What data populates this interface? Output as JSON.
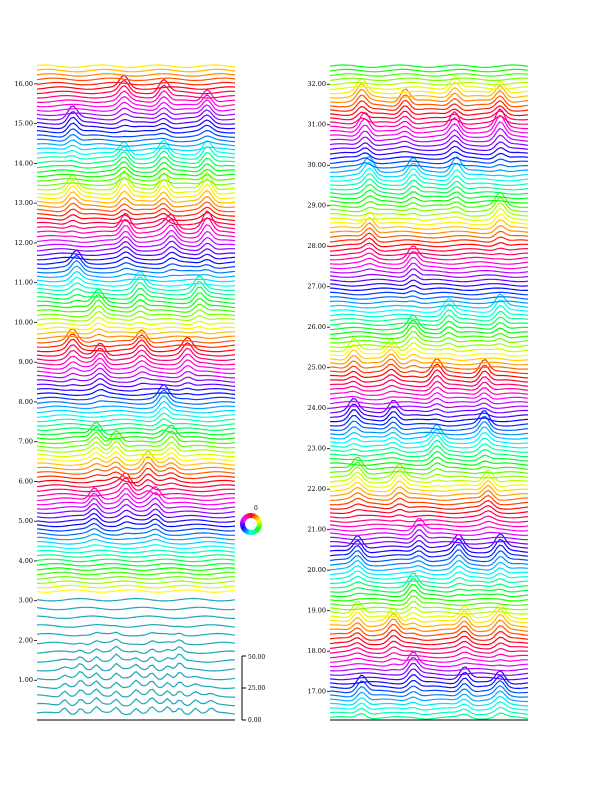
{
  "chart_data": [
    {
      "type": "waterfall",
      "panel": "left",
      "y_ticks": [
        {
          "value": 1,
          "label": "1.00"
        },
        {
          "value": 2,
          "label": "2.00"
        },
        {
          "value": 3,
          "label": "3.00"
        },
        {
          "value": 4,
          "label": "4.00"
        },
        {
          "value": 5,
          "label": "5.00"
        },
        {
          "value": 6,
          "label": "6.00"
        },
        {
          "value": 7,
          "label": "7.00"
        },
        {
          "value": 8,
          "label": "8.00"
        },
        {
          "value": 9,
          "label": "9.00"
        },
        {
          "value": 10,
          "label": "10.00"
        },
        {
          "value": 11,
          "label": "11.00"
        },
        {
          "value": 12,
          "label": "12.00"
        },
        {
          "value": 13,
          "label": "13.00"
        },
        {
          "value": 14,
          "label": "14.00"
        },
        {
          "value": 15,
          "label": "15.00"
        },
        {
          "value": 16,
          "label": "16.00"
        }
      ],
      "ylim": [
        0,
        16.5
      ],
      "peaks": [
        {
          "x": 0.18,
          "y": 15.2
        },
        {
          "x": 0.44,
          "y": 16.0
        },
        {
          "x": 0.64,
          "y": 15.8
        },
        {
          "x": 0.86,
          "y": 15.6
        },
        {
          "x": 0.44,
          "y": 14.3
        },
        {
          "x": 0.64,
          "y": 14.3
        },
        {
          "x": 0.86,
          "y": 14.3
        },
        {
          "x": 0.18,
          "y": 13.4
        },
        {
          "x": 0.44,
          "y": 13.4
        },
        {
          "x": 0.64,
          "y": 13.4
        },
        {
          "x": 0.86,
          "y": 13.4
        },
        {
          "x": 0.45,
          "y": 12.4
        },
        {
          "x": 0.68,
          "y": 12.4
        },
        {
          "x": 0.86,
          "y": 12.4
        },
        {
          "x": 0.2,
          "y": 11.6
        },
        {
          "x": 0.52,
          "y": 11.0
        },
        {
          "x": 0.82,
          "y": 10.9
        },
        {
          "x": 0.31,
          "y": 10.6
        },
        {
          "x": 0.18,
          "y": 9.6
        },
        {
          "x": 0.53,
          "y": 9.6
        },
        {
          "x": 0.32,
          "y": 9.2
        },
        {
          "x": 0.76,
          "y": 9.4
        },
        {
          "x": 0.64,
          "y": 8.1
        },
        {
          "x": 0.3,
          "y": 7.3
        },
        {
          "x": 0.68,
          "y": 7.1
        },
        {
          "x": 0.4,
          "y": 7.0
        },
        {
          "x": 0.56,
          "y": 6.5
        },
        {
          "x": 0.29,
          "y": 5.6
        },
        {
          "x": 0.45,
          "y": 5.9
        },
        {
          "x": 0.6,
          "y": 5.6
        }
      ],
      "cone_peaks": [
        {
          "x": 0.14,
          "h": 1.6
        },
        {
          "x": 0.22,
          "h": 2.2
        },
        {
          "x": 0.3,
          "h": 2.4
        },
        {
          "x": 0.4,
          "h": 2.5
        },
        {
          "x": 0.5,
          "h": 2.0
        },
        {
          "x": 0.58,
          "h": 2.4
        },
        {
          "x": 0.66,
          "h": 2.0
        },
        {
          "x": 0.72,
          "h": 2.5
        },
        {
          "x": 0.8,
          "h": 1.2
        },
        {
          "x": 0.88,
          "h": 0.9
        }
      ]
    },
    {
      "type": "waterfall",
      "panel": "right",
      "y_ticks": [
        {
          "value": 17,
          "label": "17.00"
        },
        {
          "value": 18,
          "label": "18.00"
        },
        {
          "value": 19,
          "label": "19.00"
        },
        {
          "value": 20,
          "label": "20.00"
        },
        {
          "value": 21,
          "label": "21.00"
        },
        {
          "value": 22,
          "label": "22.00"
        },
        {
          "value": 23,
          "label": "23.00"
        },
        {
          "value": 24,
          "label": "24.00"
        },
        {
          "value": 25,
          "label": "25.00"
        },
        {
          "value": 26,
          "label": "26.00"
        },
        {
          "value": 27,
          "label": "27.00"
        },
        {
          "value": 28,
          "label": "28.00"
        },
        {
          "value": 29,
          "label": "29.00"
        },
        {
          "value": 30,
          "label": "30.00"
        },
        {
          "value": 31,
          "label": "31.00"
        },
        {
          "value": 32,
          "label": "32.00"
        }
      ],
      "ylim": [
        16.3,
        32.5
      ],
      "peaks": [
        {
          "x": 0.16,
          "y": 31.8
        },
        {
          "x": 0.63,
          "y": 32.0
        },
        {
          "x": 0.86,
          "y": 31.8
        },
        {
          "x": 0.18,
          "y": 31.0
        },
        {
          "x": 0.38,
          "y": 31.6
        },
        {
          "x": 0.63,
          "y": 31.0
        },
        {
          "x": 0.86,
          "y": 31.0
        },
        {
          "x": 0.2,
          "y": 29.9
        },
        {
          "x": 0.42,
          "y": 29.9
        },
        {
          "x": 0.64,
          "y": 29.9
        },
        {
          "x": 0.86,
          "y": 29.0
        },
        {
          "x": 0.2,
          "y": 28.6
        },
        {
          "x": 0.42,
          "y": 27.8
        },
        {
          "x": 0.6,
          "y": 26.5
        },
        {
          "x": 0.86,
          "y": 26.6
        },
        {
          "x": 0.42,
          "y": 26.0
        },
        {
          "x": 0.12,
          "y": 25.5
        },
        {
          "x": 0.31,
          "y": 25.5
        },
        {
          "x": 0.54,
          "y": 24.9
        },
        {
          "x": 0.78,
          "y": 24.9
        },
        {
          "x": 0.12,
          "y": 24.0
        },
        {
          "x": 0.32,
          "y": 24.0
        },
        {
          "x": 0.78,
          "y": 23.6
        },
        {
          "x": 0.54,
          "y": 23.3
        },
        {
          "x": 0.14,
          "y": 22.6
        },
        {
          "x": 0.35,
          "y": 22.4
        },
        {
          "x": 0.8,
          "y": 22.2
        },
        {
          "x": 0.45,
          "y": 21.1
        },
        {
          "x": 0.65,
          "y": 20.6
        },
        {
          "x": 0.86,
          "y": 20.6
        },
        {
          "x": 0.14,
          "y": 20.6
        },
        {
          "x": 0.42,
          "y": 19.6
        },
        {
          "x": 0.14,
          "y": 19.0
        },
        {
          "x": 0.32,
          "y": 18.8
        },
        {
          "x": 0.68,
          "y": 18.9
        },
        {
          "x": 0.86,
          "y": 18.9
        },
        {
          "x": 0.42,
          "y": 17.7
        },
        {
          "x": 0.68,
          "y": 17.4
        },
        {
          "x": 0.86,
          "y": 17.3
        },
        {
          "x": 0.16,
          "y": 17.2
        }
      ]
    }
  ],
  "phase_key": {
    "label": "0"
  },
  "amplitude_scale": {
    "labels": [
      "50.00",
      "25.00",
      "0.00"
    ]
  }
}
